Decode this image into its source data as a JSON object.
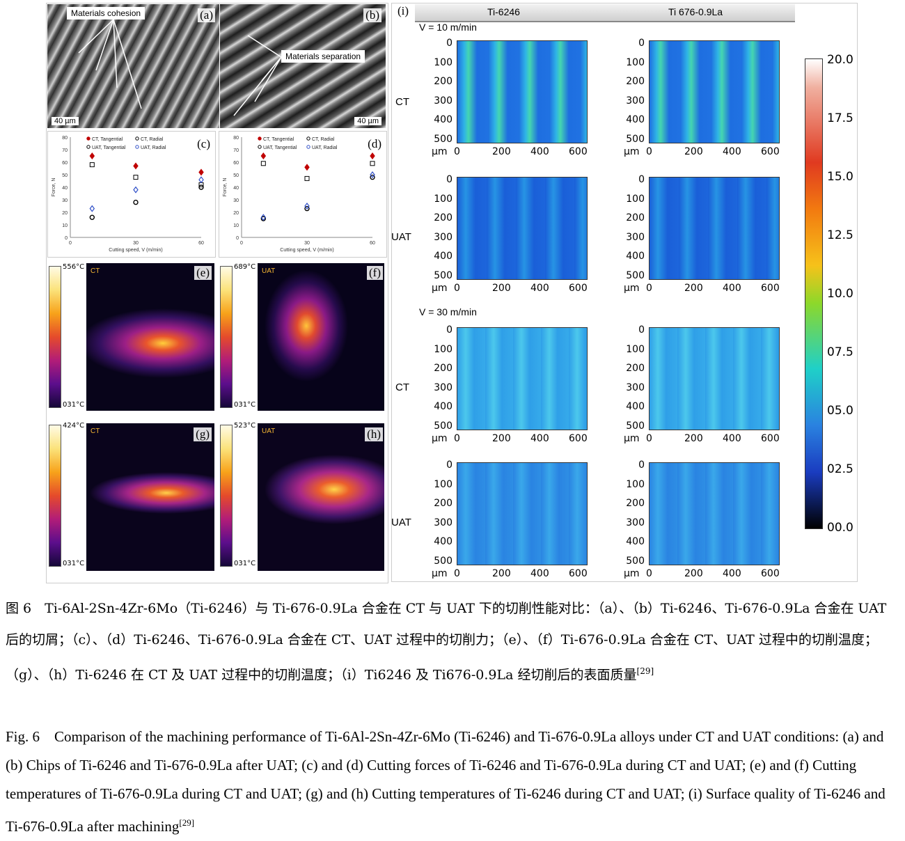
{
  "panels": {
    "a": {
      "label": "(a)",
      "callout": "Materials cohesion",
      "scale": "40 µm"
    },
    "b": {
      "label": "(b)",
      "callout": "Materials separation",
      "scale": "40 µm"
    },
    "e": {
      "label": "(e)",
      "max": "556°C",
      "min": "031°C",
      "mode": "CT"
    },
    "f": {
      "label": "(f)",
      "max": "689°C",
      "min": "031°C",
      "mode": "UAT"
    },
    "g": {
      "label": "(g)",
      "max": "424°C",
      "min": "031°C",
      "mode": "CT"
    },
    "h": {
      "label": "(h)",
      "max": "523°C",
      "min": "031°C",
      "mode": "UAT"
    },
    "i": {
      "label": "(i)",
      "col_headers": [
        "Ti-6246",
        "Ti 676-0.9La"
      ],
      "speed_10": "V = 10 m/min",
      "speed_30": "V = 30 m/min",
      "row_labels": [
        "CT",
        "UAT",
        "CT",
        "UAT"
      ],
      "y_ticks": [
        "0",
        "100",
        "200",
        "300",
        "400",
        "500"
      ],
      "x_ticks": [
        "0",
        "200",
        "400",
        "600"
      ],
      "x_unit": "µm",
      "colorbar_ticks": [
        "20.0",
        "17.5",
        "15.0",
        "12.5",
        "10.0",
        "07.5",
        "05.0",
        "02.5",
        "00.0"
      ]
    }
  },
  "chart_data": [
    {
      "type": "scatter",
      "panel": "(c)",
      "xlabel": "Cutting speed, V (m/min)",
      "ylabel": "Force, N",
      "xlim": [
        0,
        60
      ],
      "ylim": [
        0,
        80
      ],
      "x_ticks": [
        0,
        30,
        60
      ],
      "y_ticks": [
        0,
        10,
        20,
        30,
        40,
        50,
        60,
        70,
        80
      ],
      "legend": [
        "CT, Tangential",
        "CT, Radial",
        "UAT, Tangential",
        "UAT, Radial"
      ],
      "series": [
        {
          "name": "CT, Tangential",
          "x": [
            10,
            30,
            60
          ],
          "y": [
            65,
            57,
            52
          ],
          "color": "#c00000",
          "marker": "diamond"
        },
        {
          "name": "CT, Radial",
          "x": [
            10,
            30,
            60
          ],
          "y": [
            58,
            48,
            42
          ],
          "color": "#000000",
          "marker": "square"
        },
        {
          "name": "UAT, Tangential",
          "x": [
            10,
            30,
            60
          ],
          "y": [
            16,
            28,
            40
          ],
          "color": "#000000",
          "marker": "circle"
        },
        {
          "name": "UAT, Radial",
          "x": [
            10,
            30,
            60
          ],
          "y": [
            23,
            38,
            46
          ],
          "color": "#3050c8",
          "marker": "diamond-open"
        }
      ]
    },
    {
      "type": "scatter",
      "panel": "(d)",
      "xlabel": "Cutting speed, V (m/min)",
      "ylabel": "Force, N",
      "xlim": [
        0,
        60
      ],
      "ylim": [
        0,
        80
      ],
      "x_ticks": [
        0,
        30,
        60
      ],
      "y_ticks": [
        0,
        10,
        20,
        30,
        40,
        50,
        60,
        70,
        80
      ],
      "legend": [
        "CT, Tangential",
        "CT, Radial",
        "UAT, Tangential",
        "UAT, Radial"
      ],
      "series": [
        {
          "name": "CT, Tangential",
          "x": [
            10,
            30,
            60
          ],
          "y": [
            65,
            56,
            65
          ],
          "color": "#c00000",
          "marker": "diamond"
        },
        {
          "name": "CT, Radial",
          "x": [
            10,
            30,
            60
          ],
          "y": [
            59,
            47,
            59
          ],
          "color": "#000000",
          "marker": "square"
        },
        {
          "name": "UAT, Tangential",
          "x": [
            10,
            30,
            60
          ],
          "y": [
            15,
            23,
            48
          ],
          "color": "#000000",
          "marker": "circle"
        },
        {
          "name": "UAT, Radial",
          "x": [
            10,
            30,
            60
          ],
          "y": [
            16,
            25,
            50
          ],
          "color": "#3050c8",
          "marker": "diamond-open"
        }
      ]
    }
  ],
  "caption": {
    "cn": "图 6　Ti-6Al-2Sn-4Zr-6Mo（Ti-6246）与 Ti-676-0.9La 合金在 CT 与 UAT 下的切削性能对比：（a）、（b）Ti-6246、Ti-676-0.9La 合金在 UAT 后的切屑；（c）、（d）Ti-6246、Ti-676-0.9La 合金在 CT、UAT 过程中的切削力；（e）、（f）Ti-676-0.9La 合金在 CT、UAT 过程中的切削温度；（g）、（h）Ti-6246 在 CT 及 UAT 过程中的切削温度；（i）Ti6246 及 Ti676-0.9La 经切削后的表面质量",
    "cn_ref": "[29]",
    "en": "Fig. 6　Comparison of the machining performance of Ti-6Al-2Sn-4Zr-6Mo (Ti-6246) and Ti-676-0.9La alloys under CT and UAT conditions: (a) and (b) Chips of Ti-6246 and Ti-676-0.9La after UAT; (c) and (d) Cutting forces of Ti-6246 and Ti-676-0.9La during CT and UAT; (e) and (f) Cutting temperatures of Ti-676-0.9La during CT and UAT; (g) and (h) Cutting temperatures of Ti-6246 during CT and UAT; (i) Surface quality of Ti-6246 and Ti-676-0.9La after machining",
    "en_ref": "[29]"
  }
}
